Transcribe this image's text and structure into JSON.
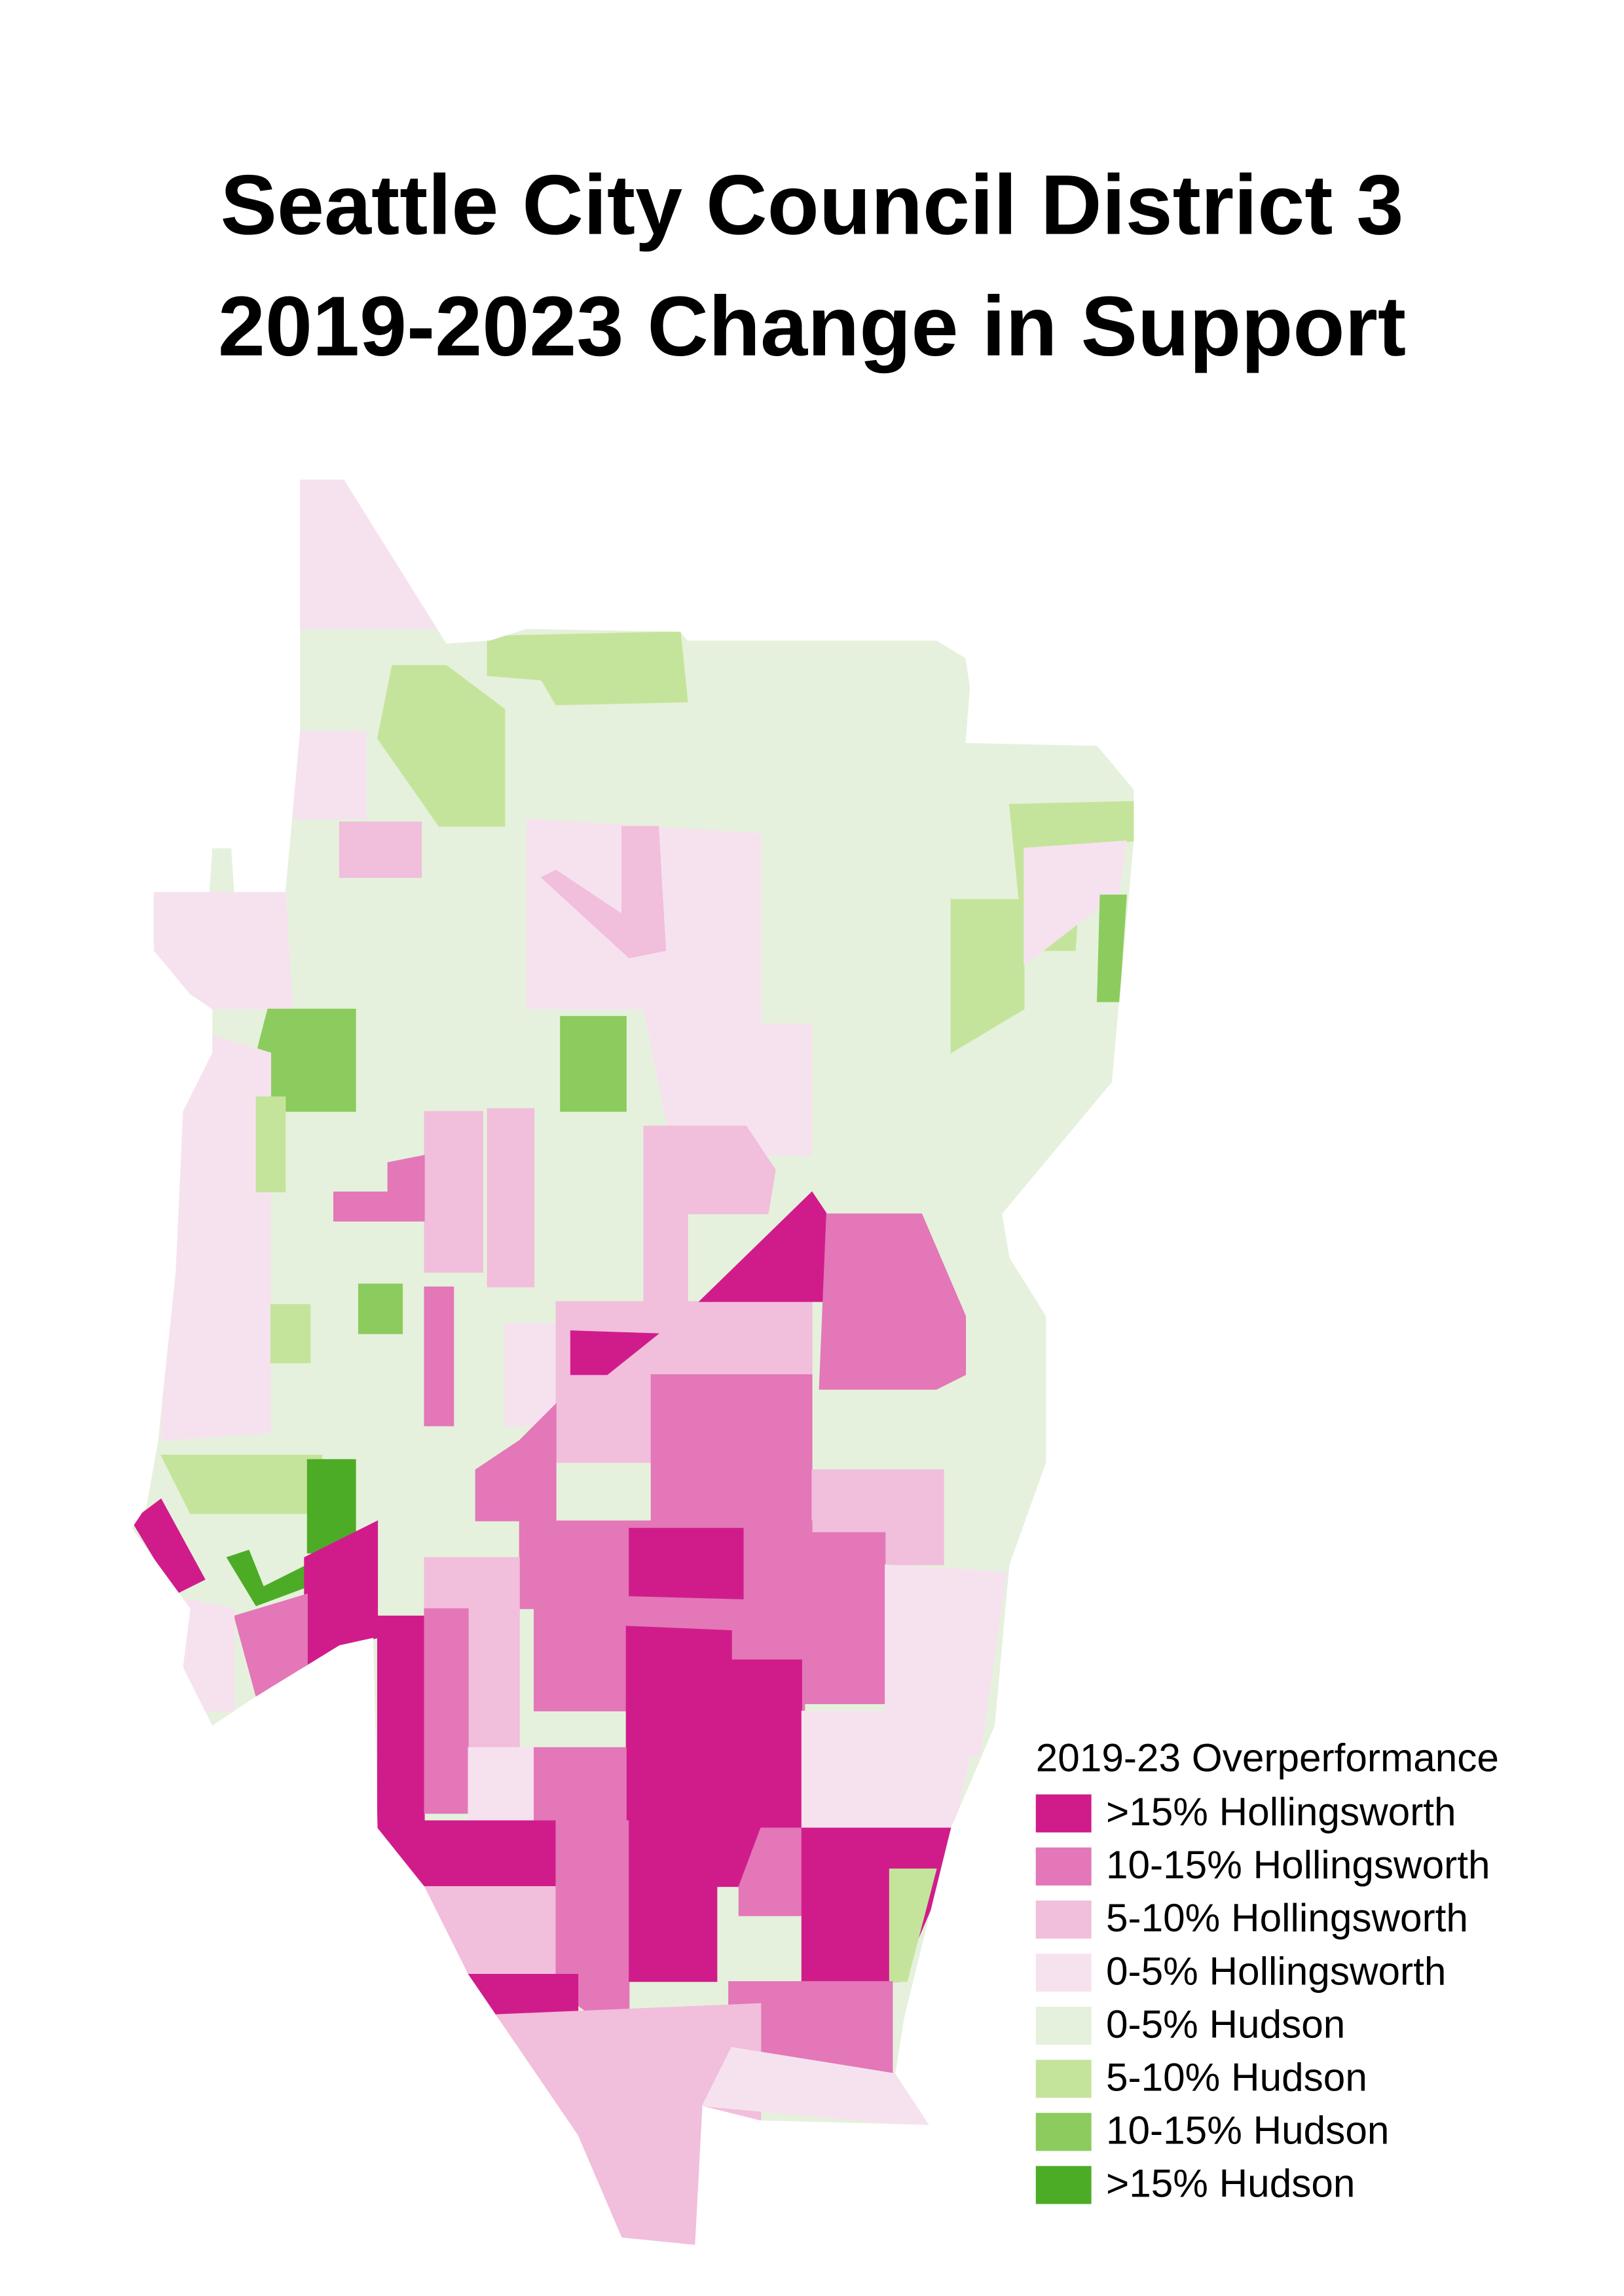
{
  "title": {
    "lines": [
      "Seattle City Council District 3",
      "2019-2023 Change in Support"
    ]
  },
  "legend": {
    "title": "2019-23 Overperformance",
    "items": [
      {
        "label": ">15% Hollingsworth",
        "color": "#d01c8b"
      },
      {
        "label": "10-15% Hollingsworth",
        "color": "#e377b8"
      },
      {
        "label": "5-10% Hollingsworth",
        "color": "#f1bedc"
      },
      {
        "label": "0-5% Hollingsworth",
        "color": "#f6e2ef"
      },
      {
        "label": "0-5% Hudson",
        "color": "#e5f1dc"
      },
      {
        "label": "5-10% Hudson",
        "color": "#c5e49b"
      },
      {
        "label": "10-15% Hudson",
        "color": "#8ccb5e"
      },
      {
        "label": ">15% Hudson",
        "color": "#4dac26"
      }
    ]
  }
}
